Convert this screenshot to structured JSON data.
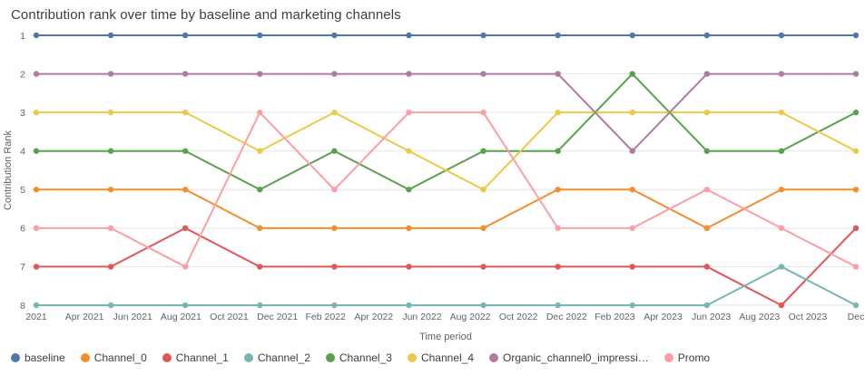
{
  "page": {
    "title": "Contribution rank over time by baseline and marketing channels"
  },
  "chart_data": {
    "type": "line",
    "title": "Contribution rank over time by baseline and marketing channels",
    "xlabel": "Time period",
    "ylabel": "Contribution Rank",
    "y_axis": {
      "ticks": [
        1,
        2,
        3,
        4,
        5,
        6,
        7,
        8
      ],
      "min": 1,
      "max": 8,
      "inverted": true
    },
    "x_tick_labels": [
      "2021",
      "Apr 2021",
      "Jun 2021",
      "Aug 2021",
      "Oct 2021",
      "Dec 2021",
      "Feb 2022",
      "Apr 2022",
      "Jun 2022",
      "Aug 2022",
      "Oct 2022",
      "Dec 2022",
      "Feb 2023",
      "Apr 2023",
      "Jun 2023",
      "Aug 2023",
      "Oct 2023",
      "Dec"
    ],
    "grid": "horizontal",
    "legend_position": "bottom",
    "marker": "circle",
    "series": [
      {
        "name": "baseline",
        "color": "#4E79A7",
        "values": [
          1,
          1,
          1,
          1,
          1,
          1,
          1,
          1,
          1,
          1,
          1,
          1
        ]
      },
      {
        "name": "Channel_0",
        "color": "#F28E2B",
        "values": [
          5,
          5,
          5,
          6,
          6,
          6,
          6,
          5,
          5,
          6,
          5,
          5
        ]
      },
      {
        "name": "Channel_1",
        "color": "#E15759",
        "values": [
          7,
          7,
          6,
          7,
          7,
          7,
          7,
          7,
          7,
          7,
          8,
          6
        ]
      },
      {
        "name": "Channel_2",
        "color": "#76B7B2",
        "values": [
          8,
          8,
          8,
          8,
          8,
          8,
          8,
          8,
          8,
          8,
          7,
          8
        ]
      },
      {
        "name": "Channel_3",
        "color": "#59A14F",
        "values": [
          4,
          4,
          4,
          5,
          4,
          5,
          4,
          4,
          2,
          4,
          4,
          3
        ]
      },
      {
        "name": "Channel_4",
        "color": "#EDC948",
        "values": [
          3,
          3,
          3,
          4,
          3,
          4,
          5,
          3,
          3,
          3,
          3,
          4
        ]
      },
      {
        "name": "Organic_channel0_impressi…",
        "color": "#B07AA1",
        "values": [
          2,
          2,
          2,
          2,
          2,
          2,
          2,
          2,
          4,
          2,
          2,
          2
        ]
      },
      {
        "name": "Promo",
        "color": "#FF9DA7",
        "values": [
          6,
          6,
          7,
          3,
          5,
          3,
          3,
          6,
          6,
          5,
          6,
          7
        ]
      }
    ]
  }
}
